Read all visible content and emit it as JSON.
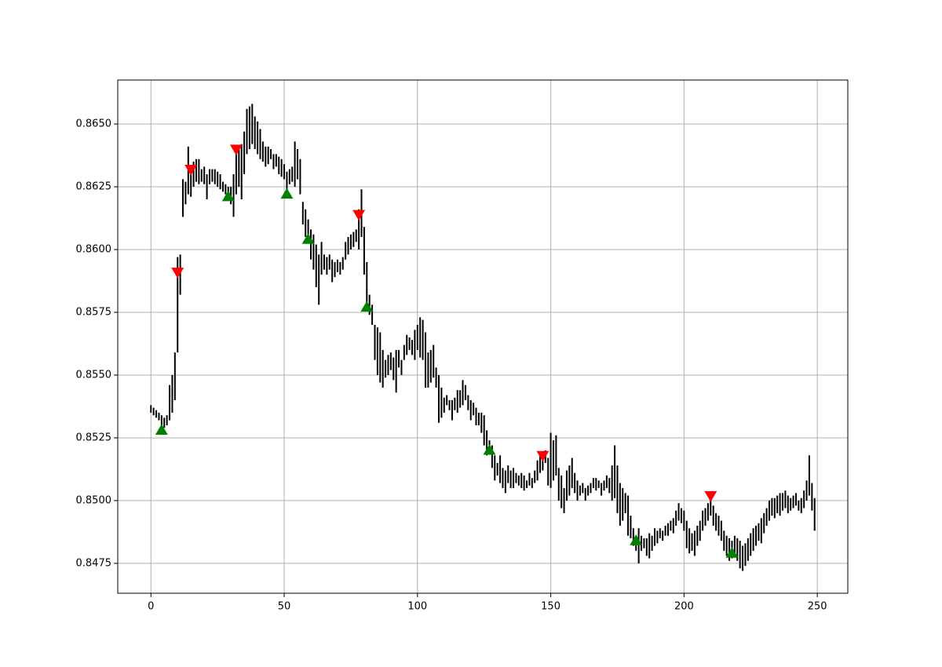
{
  "chart_data": {
    "type": "range-bars",
    "xlim": [
      -12.45,
      261.45
    ],
    "xticks": [
      0,
      50,
      100,
      150,
      200,
      250
    ],
    "ylim": [
      0.84631,
      0.86675
    ],
    "yticks": [
      {
        "value": 0.8475,
        "label": "0.8475"
      },
      {
        "value": 0.85,
        "label": "0.8500"
      },
      {
        "value": 0.8525,
        "label": "0.8525"
      },
      {
        "value": 0.855,
        "label": "0.8550"
      },
      {
        "value": 0.8575,
        "label": "0.8575"
      },
      {
        "value": 0.86,
        "label": "0.8600"
      },
      {
        "value": 0.8625,
        "label": "0.8625"
      },
      {
        "value": 0.865,
        "label": "0.8650"
      }
    ],
    "grid": true,
    "bars": {
      "color": "#000000",
      "x": [
        0,
        1,
        2,
        3,
        4,
        5,
        6,
        7,
        8,
        9,
        10,
        11,
        12,
        13,
        14,
        15,
        16,
        17,
        18,
        19,
        20,
        21,
        22,
        23,
        24,
        25,
        26,
        27,
        28,
        29,
        30,
        31,
        32,
        33,
        34,
        35,
        36,
        37,
        38,
        39,
        40,
        41,
        42,
        43,
        44,
        45,
        46,
        47,
        48,
        49,
        50,
        51,
        52,
        53,
        54,
        55,
        56,
        57,
        58,
        59,
        60,
        61,
        62,
        63,
        64,
        65,
        66,
        67,
        68,
        69,
        70,
        71,
        72,
        73,
        74,
        75,
        76,
        77,
        78,
        79,
        80,
        81,
        82,
        83,
        84,
        85,
        86,
        87,
        88,
        89,
        90,
        91,
        92,
        93,
        94,
        95,
        96,
        97,
        98,
        99,
        100,
        101,
        102,
        103,
        104,
        105,
        106,
        107,
        108,
        109,
        110,
        111,
        112,
        113,
        114,
        115,
        116,
        117,
        118,
        119,
        120,
        121,
        122,
        123,
        124,
        125,
        126,
        127,
        128,
        129,
        130,
        131,
        132,
        133,
        134,
        135,
        136,
        137,
        138,
        139,
        140,
        141,
        142,
        143,
        144,
        145,
        146,
        147,
        148,
        149,
        150,
        151,
        152,
        153,
        154,
        155,
        156,
        157,
        158,
        159,
        160,
        161,
        162,
        163,
        164,
        165,
        166,
        167,
        168,
        169,
        170,
        171,
        172,
        173,
        174,
        175,
        176,
        177,
        178,
        179,
        180,
        181,
        182,
        183,
        184,
        185,
        186,
        187,
        188,
        189,
        190,
        191,
        192,
        193,
        194,
        195,
        196,
        197,
        198,
        199,
        200,
        201,
        202,
        203,
        204,
        205,
        206,
        207,
        208,
        209,
        210,
        211,
        212,
        213,
        214,
        215,
        216,
        217,
        218,
        219,
        220,
        221,
        222,
        223,
        224,
        225,
        226,
        227,
        228,
        229,
        230,
        231,
        232,
        233,
        234,
        235,
        236,
        237,
        238,
        239,
        240,
        241,
        242,
        243,
        244,
        245,
        246,
        247,
        248,
        249
      ],
      "low": [
        0.8535,
        0.8534,
        0.8533,
        0.8532,
        0.853,
        0.8529,
        0.853,
        0.8532,
        0.8535,
        0.854,
        0.8559,
        0.8582,
        0.8613,
        0.8618,
        0.8622,
        0.8621,
        0.8625,
        0.8627,
        0.8626,
        0.8627,
        0.8626,
        0.862,
        0.8626,
        0.8627,
        0.8626,
        0.8625,
        0.8624,
        0.8623,
        0.8622,
        0.862,
        0.8618,
        0.8613,
        0.8622,
        0.8625,
        0.862,
        0.863,
        0.8638,
        0.864,
        0.8642,
        0.864,
        0.8638,
        0.8636,
        0.8635,
        0.8633,
        0.8634,
        0.8636,
        0.8632,
        0.8633,
        0.863,
        0.8629,
        0.8628,
        0.8622,
        0.8626,
        0.8627,
        0.8625,
        0.8628,
        0.8622,
        0.861,
        0.8605,
        0.8604,
        0.8596,
        0.8592,
        0.8585,
        0.8578,
        0.859,
        0.8592,
        0.859,
        0.8592,
        0.8587,
        0.8589,
        0.8591,
        0.859,
        0.8592,
        0.8596,
        0.8598,
        0.86,
        0.8601,
        0.8603,
        0.86,
        0.8605,
        0.859,
        0.8578,
        0.8574,
        0.857,
        0.8556,
        0.855,
        0.8547,
        0.8545,
        0.8549,
        0.855,
        0.8552,
        0.8548,
        0.8543,
        0.8553,
        0.855,
        0.8556,
        0.8558,
        0.856,
        0.8558,
        0.8556,
        0.856,
        0.8557,
        0.8556,
        0.8545,
        0.8545,
        0.8547,
        0.8549,
        0.8545,
        0.8531,
        0.8533,
        0.8535,
        0.8538,
        0.8536,
        0.8532,
        0.8536,
        0.8535,
        0.8537,
        0.8538,
        0.854,
        0.8536,
        0.8532,
        0.8534,
        0.853,
        0.853,
        0.8527,
        0.8522,
        0.8518,
        0.852,
        0.8513,
        0.8508,
        0.851,
        0.8507,
        0.8505,
        0.8503,
        0.8507,
        0.8505,
        0.8505,
        0.8507,
        0.8506,
        0.8505,
        0.8504,
        0.8505,
        0.8506,
        0.8505,
        0.8507,
        0.8508,
        0.8511,
        0.8512,
        0.8515,
        0.8506,
        0.8505,
        0.8508,
        0.851,
        0.85,
        0.8497,
        0.8495,
        0.85,
        0.8502,
        0.8505,
        0.8503,
        0.85,
        0.8502,
        0.8503,
        0.85,
        0.8502,
        0.8503,
        0.8505,
        0.8504,
        0.8505,
        0.8502,
        0.8504,
        0.8505,
        0.8503,
        0.85,
        0.8501,
        0.8495,
        0.849,
        0.8492,
        0.8495,
        0.8486,
        0.8485,
        0.8482,
        0.848,
        0.8475,
        0.848,
        0.8481,
        0.8478,
        0.8477,
        0.848,
        0.8482,
        0.8483,
        0.8485,
        0.8484,
        0.8486,
        0.8486,
        0.8488,
        0.8487,
        0.849,
        0.8492,
        0.8491,
        0.8488,
        0.8481,
        0.8479,
        0.848,
        0.8478,
        0.8482,
        0.8484,
        0.8488,
        0.849,
        0.8492,
        0.8494,
        0.849,
        0.8488,
        0.8486,
        0.8484,
        0.848,
        0.8478,
        0.8476,
        0.8477,
        0.8479,
        0.8476,
        0.8473,
        0.8472,
        0.8474,
        0.8476,
        0.8478,
        0.848,
        0.8482,
        0.8484,
        0.8483,
        0.8487,
        0.849,
        0.8492,
        0.8494,
        0.8493,
        0.8495,
        0.8494,
        0.8496,
        0.8497,
        0.8495,
        0.8496,
        0.8497,
        0.8498,
        0.8496,
        0.8495,
        0.8497,
        0.85,
        0.8502,
        0.8496,
        0.8488
      ],
      "high": [
        0.8538,
        0.8537,
        0.8536,
        0.8535,
        0.8534,
        0.8533,
        0.8534,
        0.8546,
        0.855,
        0.8559,
        0.8597,
        0.8598,
        0.8628,
        0.8627,
        0.8641,
        0.8633,
        0.8635,
        0.8636,
        0.8636,
        0.8632,
        0.8633,
        0.863,
        0.8632,
        0.8632,
        0.8632,
        0.8631,
        0.863,
        0.8627,
        0.8626,
        0.8625,
        0.8625,
        0.863,
        0.8638,
        0.864,
        0.8642,
        0.8647,
        0.8656,
        0.8657,
        0.8658,
        0.8653,
        0.8651,
        0.8648,
        0.8643,
        0.8641,
        0.8641,
        0.864,
        0.8638,
        0.8638,
        0.8637,
        0.8636,
        0.8634,
        0.8631,
        0.8632,
        0.8633,
        0.8643,
        0.864,
        0.8636,
        0.8619,
        0.8616,
        0.8612,
        0.8608,
        0.8606,
        0.8602,
        0.8598,
        0.8603,
        0.8598,
        0.8597,
        0.8598,
        0.8596,
        0.8595,
        0.8596,
        0.8595,
        0.8597,
        0.8603,
        0.8605,
        0.8606,
        0.8607,
        0.8608,
        0.8616,
        0.8624,
        0.8609,
        0.8595,
        0.8582,
        0.8578,
        0.857,
        0.8569,
        0.8567,
        0.856,
        0.8556,
        0.8558,
        0.8559,
        0.8557,
        0.856,
        0.856,
        0.8556,
        0.8562,
        0.8566,
        0.8565,
        0.8564,
        0.8568,
        0.857,
        0.8573,
        0.8572,
        0.8567,
        0.8559,
        0.856,
        0.8562,
        0.8553,
        0.855,
        0.8545,
        0.8541,
        0.8542,
        0.854,
        0.854,
        0.8541,
        0.8544,
        0.8544,
        0.8548,
        0.8546,
        0.8542,
        0.854,
        0.8539,
        0.8537,
        0.8535,
        0.8535,
        0.8534,
        0.8528,
        0.8524,
        0.8522,
        0.8518,
        0.8515,
        0.8518,
        0.8513,
        0.8512,
        0.8514,
        0.8512,
        0.8513,
        0.8511,
        0.851,
        0.8511,
        0.851,
        0.8508,
        0.8511,
        0.8509,
        0.8512,
        0.8516,
        0.8518,
        0.8518,
        0.852,
        0.8517,
        0.8527,
        0.8524,
        0.8526,
        0.8513,
        0.851,
        0.8505,
        0.8512,
        0.8514,
        0.8517,
        0.8511,
        0.8508,
        0.8506,
        0.8507,
        0.8505,
        0.8506,
        0.8507,
        0.8509,
        0.8509,
        0.8508,
        0.8507,
        0.8508,
        0.851,
        0.8509,
        0.8514,
        0.8522,
        0.8514,
        0.8507,
        0.8505,
        0.8503,
        0.8502,
        0.8494,
        0.8489,
        0.8486,
        0.8489,
        0.8486,
        0.8485,
        0.8485,
        0.8487,
        0.8486,
        0.8489,
        0.8488,
        0.8489,
        0.8488,
        0.849,
        0.8491,
        0.8492,
        0.8493,
        0.8496,
        0.8499,
        0.8497,
        0.8496,
        0.8492,
        0.8489,
        0.8487,
        0.8488,
        0.849,
        0.8492,
        0.8496,
        0.8497,
        0.8499,
        0.8502,
        0.8498,
        0.8495,
        0.8494,
        0.8492,
        0.8488,
        0.8486,
        0.8485,
        0.8484,
        0.8486,
        0.8485,
        0.8484,
        0.8482,
        0.8483,
        0.8485,
        0.8487,
        0.8489,
        0.849,
        0.8491,
        0.8493,
        0.8495,
        0.8497,
        0.85,
        0.8501,
        0.8501,
        0.8502,
        0.8503,
        0.8503,
        0.8504,
        0.8502,
        0.8501,
        0.8502,
        0.8503,
        0.85,
        0.8501,
        0.8504,
        0.8508,
        0.8518,
        0.8507,
        0.8501
      ]
    },
    "signals": [
      {
        "marker": "triangle-up",
        "color": "#008000",
        "x": [
          4,
          29,
          51,
          59,
          81,
          127,
          182,
          218
        ],
        "y": [
          0.8528,
          0.8621,
          0.8622,
          0.8604,
          0.8577,
          0.852,
          0.8484,
          0.8479
        ]
      },
      {
        "marker": "triangle-down",
        "color": "#ff0000",
        "x": [
          10,
          15,
          32,
          78,
          147,
          210
        ],
        "y": [
          0.8591,
          0.8632,
          0.864,
          0.8614,
          0.8518,
          0.8502
        ]
      }
    ]
  }
}
